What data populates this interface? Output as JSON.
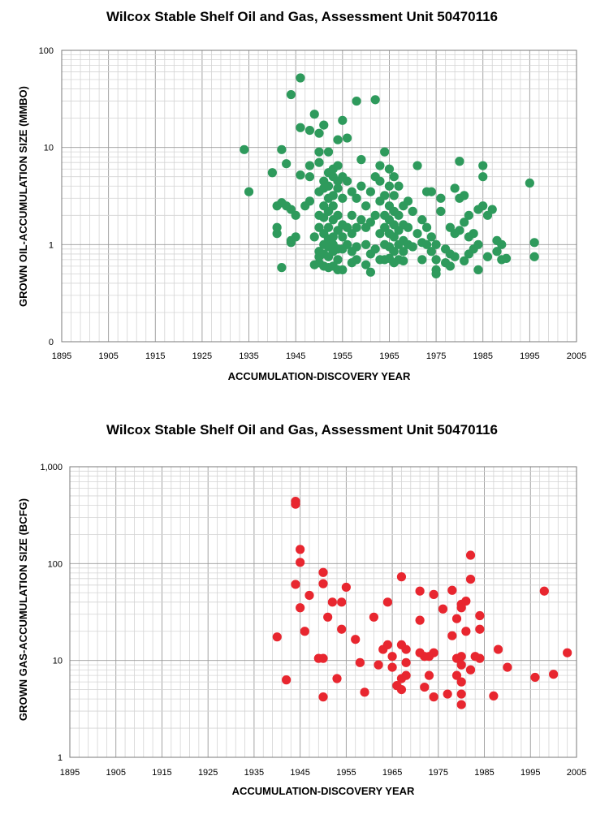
{
  "chart_data": [
    {
      "type": "scatter",
      "title": "Wilcox Stable Shelf Oil and Gas, Assessment Unit 50470116",
      "xlabel": "ACCUMULATION-DISCOVERY YEAR",
      "ylabel": "GROWN OIL-ACCUMULATION SIZE (MMBO)",
      "xlim": [
        1895,
        2005
      ],
      "ylim": [
        0.1,
        100
      ],
      "yscale": "log",
      "xticks": [
        1895,
        1905,
        1915,
        1925,
        1935,
        1945,
        1955,
        1965,
        1975,
        1985,
        1995,
        2005
      ],
      "xtick_labels": [
        "1895",
        "1905",
        "1915",
        "1925",
        "1935",
        "1945",
        "1955",
        "1965",
        "1975",
        "1985",
        "1995",
        "2005"
      ],
      "yticks": [
        0.1,
        1,
        10,
        100
      ],
      "ytick_labels": [
        "0",
        "1",
        "10",
        "100"
      ],
      "grid": true,
      "marker_color": "#2e9a5c",
      "x": [
        1934,
        1935,
        1940,
        1941,
        1941,
        1941,
        1942,
        1942,
        1942,
        1943,
        1943,
        1944,
        1944,
        1944,
        1944,
        1945,
        1945,
        1946,
        1946,
        1946,
        1947,
        1948,
        1948,
        1948,
        1948,
        1949,
        1949,
        1949,
        1950,
        1950,
        1950,
        1950,
        1950,
        1950,
        1950,
        1950,
        1950,
        1951,
        1951,
        1951,
        1951,
        1951,
        1951,
        1951,
        1951,
        1951,
        1952,
        1952,
        1952,
        1952,
        1952,
        1952,
        1952,
        1952,
        1952,
        1952,
        1953,
        1953,
        1953,
        1953,
        1953,
        1953,
        1953,
        1953,
        1953,
        1954,
        1954,
        1954,
        1954,
        1954,
        1954,
        1954,
        1954,
        1954,
        1955,
        1955,
        1955,
        1955,
        1955,
        1955,
        1955,
        1956,
        1956,
        1956,
        1956,
        1957,
        1957,
        1957,
        1957,
        1957,
        1958,
        1958,
        1958,
        1958,
        1958,
        1959,
        1959,
        1959,
        1960,
        1960,
        1960,
        1960,
        1961,
        1961,
        1961,
        1961,
        1962,
        1962,
        1962,
        1962,
        1963,
        1963,
        1963,
        1963,
        1963,
        1964,
        1964,
        1964,
        1964,
        1964,
        1964,
        1965,
        1965,
        1965,
        1965,
        1965,
        1965,
        1965,
        1966,
        1966,
        1966,
        1966,
        1966,
        1966,
        1966,
        1967,
        1967,
        1967,
        1967,
        1967,
        1968,
        1968,
        1968,
        1968,
        1968,
        1969,
        1969,
        1969,
        1970,
        1970,
        1971,
        1971,
        1972,
        1972,
        1972,
        1973,
        1973,
        1973,
        1974,
        1974,
        1974,
        1975,
        1975,
        1975,
        1975,
        1976,
        1976,
        1977,
        1977,
        1978,
        1978,
        1978,
        1979,
        1979,
        1979,
        1980,
        1980,
        1980,
        1981,
        1981,
        1981,
        1982,
        1982,
        1982,
        1983,
        1983,
        1984,
        1984,
        1984,
        1985,
        1985,
        1985,
        1986,
        1986,
        1987,
        1988,
        1988,
        1989,
        1989,
        1990,
        1995,
        1996,
        1996
      ],
      "y": [
        9.5,
        3.5,
        5.5,
        2.5,
        1.5,
        1.3,
        9.5,
        2.7,
        0.58,
        6.8,
        2.5,
        2.3,
        1.05,
        1.1,
        35,
        2.0,
        1.2,
        5.2,
        16,
        52,
        2.5,
        6.5,
        5.0,
        2.8,
        15,
        22,
        1.2,
        0.62,
        3.5,
        7.0,
        14,
        9.0,
        2.0,
        1.5,
        0.85,
        0.65,
        0.75,
        17,
        4.5,
        3.8,
        2.5,
        1.9,
        1.3,
        1.0,
        0.8,
        0.6,
        5.5,
        4.0,
        3.0,
        2.2,
        1.5,
        1.15,
        0.95,
        0.75,
        0.58,
        9.0,
        6.0,
        5.0,
        3.2,
        2.5,
        1.8,
        1.2,
        1.0,
        0.85,
        0.6,
        12,
        6.5,
        4.5,
        3.8,
        2.0,
        1.4,
        0.9,
        0.7,
        0.55,
        19,
        5.0,
        3.0,
        1.6,
        1.2,
        0.9,
        0.55,
        12.5,
        4.5,
        1.5,
        1.0,
        3.5,
        2.0,
        1.3,
        0.85,
        0.65,
        30,
        3.0,
        1.5,
        0.95,
        0.7,
        7.5,
        4.0,
        1.8,
        2.5,
        1.5,
        1.0,
        0.62,
        3.5,
        1.7,
        0.8,
        0.52,
        31,
        5.0,
        2.0,
        0.9,
        6.5,
        4.5,
        2.8,
        1.3,
        0.7,
        9.0,
        3.2,
        2.0,
        1.5,
        1.0,
        0.7,
        6.0,
        4.0,
        2.5,
        1.8,
        1.3,
        0.95,
        0.72,
        5.0,
        3.2,
        2.2,
        1.6,
        1.2,
        0.85,
        0.65,
        4.0,
        2.0,
        1.4,
        1.0,
        0.7,
        2.5,
        1.6,
        1.1,
        0.85,
        0.68,
        2.8,
        1.5,
        1.0,
        2.2,
        0.95,
        6.5,
        1.3,
        1.8,
        1.05,
        0.7,
        3.5,
        1.5,
        1.0,
        3.5,
        1.2,
        0.85,
        1.0,
        0.7,
        0.55,
        0.5,
        3.0,
        2.2,
        0.9,
        0.65,
        1.5,
        0.8,
        0.6,
        3.8,
        1.3,
        0.75,
        3.0,
        7.2,
        1.4,
        3.2,
        1.7,
        0.68,
        2.0,
        1.2,
        0.8,
        1.3,
        0.9,
        2.3,
        1.0,
        0.55,
        6.5,
        5.0,
        2.5,
        2.0,
        0.75,
        2.3,
        1.1,
        0.85,
        1.0,
        0.7,
        0.72,
        4.3,
        1.05,
        0.75
      ]
    },
    {
      "type": "scatter",
      "title": "Wilcox Stable Shelf Oil and Gas, Assessment Unit 50470116",
      "xlabel": "ACCUMULATION-DISCOVERY YEAR",
      "ylabel": "GROWN GAS-ACCUMULATION SIZE (BCFG)",
      "xlim": [
        1895,
        2005
      ],
      "ylim": [
        1,
        1000
      ],
      "yscale": "log",
      "xticks": [
        1895,
        1905,
        1915,
        1925,
        1935,
        1945,
        1955,
        1965,
        1975,
        1985,
        1995,
        2005
      ],
      "xtick_labels": [
        "1895",
        "1905",
        "1915",
        "1925",
        "1935",
        "1945",
        "1955",
        "1965",
        "1975",
        "1985",
        "1995",
        "2005"
      ],
      "yticks": [
        1,
        10,
        100,
        1000
      ],
      "ytick_labels": [
        "1",
        "10",
        "100",
        "1,000"
      ],
      "grid": true,
      "marker_color": "#e8262f",
      "x": [
        1940,
        1942,
        1944,
        1944,
        1944,
        1945,
        1945,
        1945,
        1946,
        1947,
        1949,
        1950,
        1950,
        1950,
        1950,
        1951,
        1952,
        1953,
        1954,
        1954,
        1955,
        1957,
        1958,
        1959,
        1961,
        1962,
        1963,
        1964,
        1964,
        1965,
        1965,
        1966,
        1967,
        1967,
        1967,
        1967,
        1968,
        1968,
        1968,
        1971,
        1971,
        1971,
        1972,
        1972,
        1973,
        1973,
        1974,
        1974,
        1974,
        1976,
        1977,
        1978,
        1978,
        1979,
        1979,
        1979,
        1980,
        1980,
        1980,
        1980,
        1980,
        1980,
        1980,
        1981,
        1981,
        1982,
        1982,
        1982,
        1983,
        1984,
        1984,
        1984,
        1987,
        1988,
        1990,
        1996,
        1998,
        2000,
        2003
      ],
      "y": [
        17.5,
        6.3,
        440,
        410,
        61,
        140,
        103,
        35,
        20,
        47,
        10.5,
        81,
        62,
        10.5,
        4.2,
        28,
        40,
        6.5,
        40,
        21,
        57,
        16.5,
        9.5,
        4.7,
        28,
        9.0,
        13,
        40,
        14.5,
        11,
        8.5,
        5.5,
        73,
        14.5,
        5.0,
        6.5,
        13,
        9.5,
        7.0,
        52,
        26,
        12,
        11,
        5.3,
        11,
        7.0,
        48,
        12,
        4.2,
        34,
        4.5,
        53,
        18,
        27,
        7.0,
        10.5,
        4.5,
        3.5,
        38,
        35,
        11,
        9.0,
        6.0,
        41,
        20,
        122,
        69,
        8.0,
        11,
        29,
        21,
        10.5,
        4.3,
        13,
        8.5,
        6.7,
        52,
        7.2,
        12
      ]
    }
  ]
}
